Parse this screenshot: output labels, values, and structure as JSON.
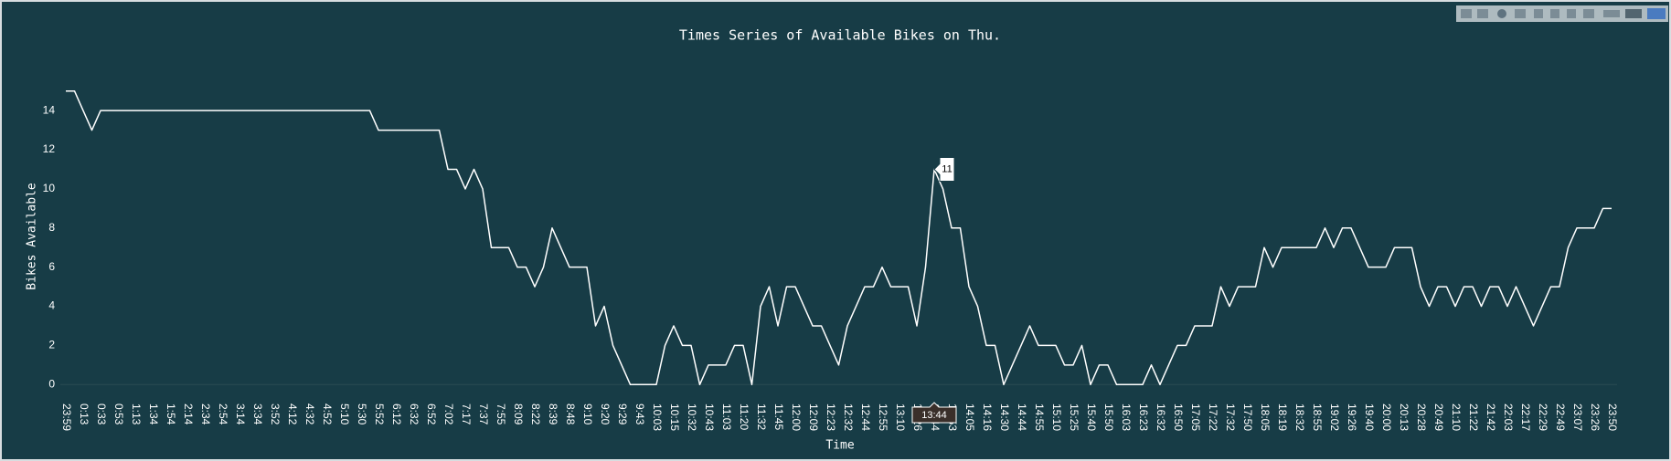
{
  "chart_data": {
    "type": "line",
    "title": "Times Series of Available Bikes on Thu.",
    "xlabel": "Time",
    "ylabel": "Bikes Available",
    "color": "#ffffff",
    "categories": [
      "23:59",
      null,
      "0:13",
      null,
      "0:33",
      null,
      "0:53",
      null,
      "1:13",
      null,
      "1:34",
      null,
      "1:54",
      null,
      "2:14",
      null,
      "2:34",
      null,
      "2:54",
      null,
      "3:14",
      null,
      "3:34",
      null,
      "3:52",
      null,
      "4:12",
      null,
      "4:32",
      null,
      "4:52",
      null,
      "5:10",
      null,
      "5:30",
      null,
      "5:52",
      null,
      "6:12",
      null,
      "6:32",
      null,
      "6:52",
      null,
      "7:02",
      null,
      "7:17",
      null,
      "7:37",
      null,
      "7:55",
      null,
      "8:09",
      null,
      "8:22",
      null,
      "8:39",
      null,
      "8:48",
      null,
      "9:10",
      null,
      "9:20",
      null,
      "9:29",
      null,
      "9:43",
      null,
      "10:03",
      null,
      "10:15",
      null,
      "10:32",
      null,
      "10:43",
      null,
      "11:03",
      null,
      "11:20",
      null,
      "11:32",
      null,
      "11:45",
      null,
      "12:00",
      null,
      "12:09",
      null,
      "12:23",
      null,
      "12:32",
      null,
      "12:44",
      null,
      "12:55",
      null,
      "13:10",
      null,
      "13:26",
      null,
      "13:44",
      null,
      "13:53",
      null,
      "14:05",
      null,
      "14:16",
      null,
      "14:30",
      null,
      "14:44",
      null,
      "14:55",
      null,
      "15:10",
      null,
      "15:25",
      null,
      "15:40",
      null,
      "15:50",
      null,
      "16:03",
      null,
      "16:23",
      null,
      "16:32",
      null,
      "16:50",
      null,
      "17:05",
      null,
      "17:22",
      null,
      "17:32",
      null,
      "17:50",
      null,
      "18:05",
      null,
      "18:19",
      null,
      "18:32",
      null,
      "18:55",
      null,
      "19:02",
      null,
      "19:26",
      null,
      "19:40",
      null,
      "20:00",
      null,
      "20:13",
      null,
      "20:28",
      null,
      "20:49",
      null,
      "21:10",
      null,
      "21:22",
      null,
      "21:42",
      null,
      "22:03",
      null,
      "22:17",
      null,
      "22:29",
      null,
      "22:49",
      null,
      "23:07",
      null,
      "23:26",
      null,
      "23:50"
    ],
    "values": [
      15,
      15,
      14,
      13,
      14,
      14,
      14,
      14,
      14,
      14,
      14,
      14,
      14,
      14,
      14,
      14,
      14,
      14,
      14,
      14,
      14,
      14,
      14,
      14,
      14,
      14,
      14,
      14,
      14,
      14,
      14,
      14,
      14,
      14,
      14,
      14,
      13,
      13,
      13,
      13,
      13,
      13,
      13,
      13,
      11,
      11,
      10,
      11,
      10,
      7,
      7,
      7,
      6,
      6,
      5,
      6,
      8,
      7,
      6,
      6,
      6,
      3,
      4,
      2,
      1,
      0,
      0,
      0,
      0,
      2,
      3,
      2,
      2,
      0,
      1,
      1,
      1,
      2,
      2,
      0,
      4,
      5,
      3,
      5,
      5,
      4,
      3,
      3,
      2,
      1,
      3,
      4,
      5,
      5,
      6,
      5,
      5,
      5,
      3,
      6,
      11,
      10,
      8,
      8,
      5,
      4,
      2,
      2,
      0,
      1,
      2,
      3,
      2,
      2,
      2,
      1,
      1,
      2,
      0,
      1,
      1,
      0,
      0,
      0,
      0,
      1,
      0,
      1,
      2,
      2,
      3,
      3,
      3,
      5,
      4,
      5,
      5,
      5,
      7,
      6,
      7,
      7,
      7,
      7,
      7,
      8,
      7,
      8,
      8,
      7,
      6,
      6,
      6,
      7,
      7,
      7,
      5,
      4,
      5,
      5,
      4,
      5,
      5,
      4,
      5,
      5,
      4,
      5,
      4,
      3,
      4,
      5,
      5,
      7,
      8,
      8,
      8,
      9,
      9
    ],
    "ylim": [
      -0.5,
      15.5
    ],
    "yticks": [
      0,
      2,
      4,
      6,
      8,
      10,
      12,
      14
    ],
    "zeroline": true,
    "hover_index": 100
  }
}
